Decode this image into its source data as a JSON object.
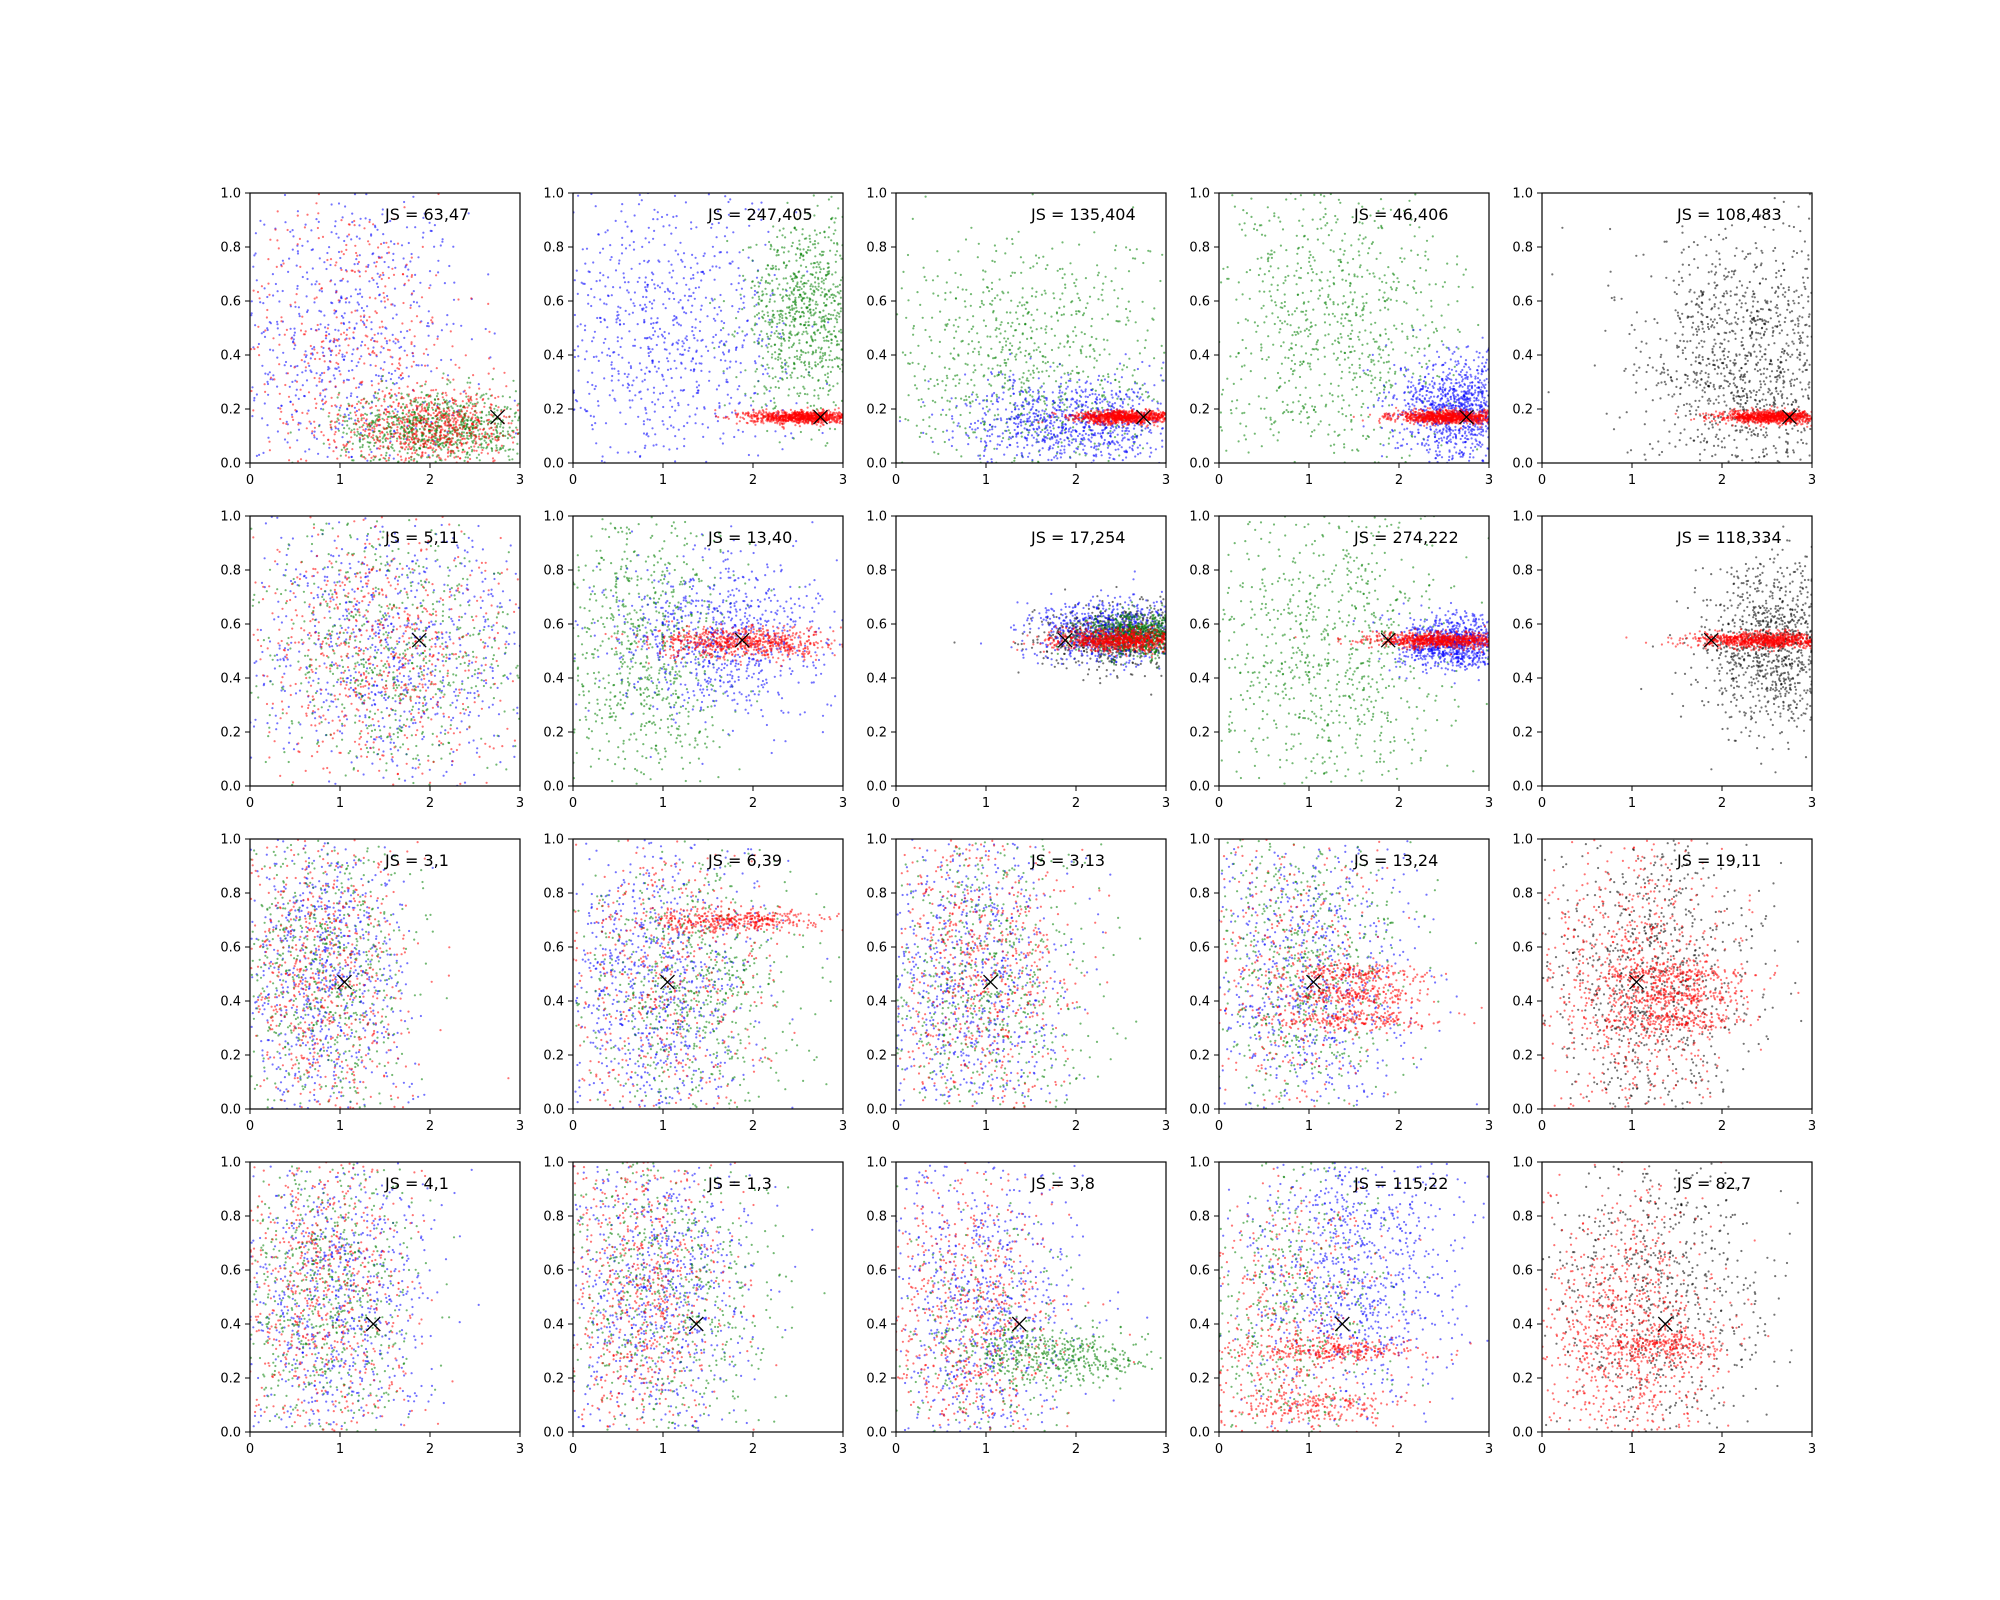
{
  "chart_data": {
    "type": "scatter",
    "grid": false,
    "rows": 4,
    "cols": 5,
    "xlim": [
      0,
      3
    ],
    "ylim": [
      0,
      1
    ],
    "xticks": [
      "0",
      "1",
      "2",
      "3"
    ],
    "yticks": [
      "0.0",
      "0.2",
      "0.4",
      "0.6",
      "0.8",
      "1.0"
    ],
    "colors": {
      "blue": "#0000ff",
      "green": "#008000",
      "red": "#ff0000",
      "black": "#000000"
    },
    "marker_points": [
      {
        "row": 0,
        "x": 2.75,
        "y": 0.17
      },
      {
        "row": 1,
        "x": 1.88,
        "y": 0.54
      },
      {
        "row": 2,
        "x": 1.05,
        "y": 0.47
      },
      {
        "row": 3,
        "x": 1.37,
        "y": 0.4
      }
    ],
    "panels": [
      {
        "row": 0,
        "col": 0,
        "label": "JS = 63,47",
        "clouds": [
          {
            "color": "blue",
            "cx": 1.0,
            "cy": 0.45,
            "sx": 0.7,
            "sy": 0.3,
            "n": 700
          },
          {
            "color": "red",
            "cx": 1.1,
            "cy": 0.4,
            "sx": 0.7,
            "sy": 0.3,
            "n": 500
          },
          {
            "color": "green",
            "cx": 2.1,
            "cy": 0.13,
            "sx": 0.55,
            "sy": 0.07,
            "n": 900
          },
          {
            "color": "red",
            "cx": 2.1,
            "cy": 0.13,
            "sx": 0.55,
            "sy": 0.07,
            "n": 700
          }
        ]
      },
      {
        "row": 0,
        "col": 1,
        "label": "JS = 247,405",
        "clouds": [
          {
            "color": "blue",
            "cx": 1.0,
            "cy": 0.45,
            "sx": 0.7,
            "sy": 0.3,
            "n": 900
          },
          {
            "color": "green",
            "cx": 2.6,
            "cy": 0.55,
            "sx": 0.35,
            "sy": 0.17,
            "n": 900
          },
          {
            "color": "red",
            "cx": 2.55,
            "cy": 0.17,
            "sx": 0.3,
            "sy": 0.012,
            "n": 900
          }
        ]
      },
      {
        "row": 0,
        "col": 2,
        "label": "JS = 135,404",
        "clouds": [
          {
            "color": "green",
            "cx": 1.5,
            "cy": 0.35,
            "sx": 0.8,
            "sy": 0.25,
            "n": 900
          },
          {
            "color": "blue",
            "cx": 2.0,
            "cy": 0.15,
            "sx": 0.6,
            "sy": 0.08,
            "n": 900
          },
          {
            "color": "red",
            "cx": 2.55,
            "cy": 0.17,
            "sx": 0.3,
            "sy": 0.012,
            "n": 900
          }
        ]
      },
      {
        "row": 0,
        "col": 3,
        "label": "JS = 46,406",
        "clouds": [
          {
            "color": "green",
            "cx": 1.3,
            "cy": 0.5,
            "sx": 0.7,
            "sy": 0.3,
            "n": 900
          },
          {
            "color": "blue",
            "cx": 2.7,
            "cy": 0.2,
            "sx": 0.35,
            "sy": 0.1,
            "n": 1100
          },
          {
            "color": "red",
            "cx": 2.55,
            "cy": 0.17,
            "sx": 0.3,
            "sy": 0.012,
            "n": 900
          }
        ]
      },
      {
        "row": 0,
        "col": 4,
        "label": "JS = 108,483",
        "clouds": [
          {
            "color": "black",
            "cx": 2.3,
            "cy": 0.35,
            "sx": 0.6,
            "sy": 0.25,
            "n": 1300
          },
          {
            "color": "red",
            "cx": 2.55,
            "cy": 0.17,
            "sx": 0.3,
            "sy": 0.012,
            "n": 900
          }
        ]
      },
      {
        "row": 1,
        "col": 0,
        "label": "JS = 5,11",
        "clouds": [
          {
            "color": "blue",
            "cx": 1.6,
            "cy": 0.5,
            "sx": 0.8,
            "sy": 0.25,
            "n": 800
          },
          {
            "color": "green",
            "cx": 1.5,
            "cy": 0.5,
            "sx": 0.8,
            "sy": 0.25,
            "n": 700
          },
          {
            "color": "red",
            "cx": 1.5,
            "cy": 0.5,
            "sx": 0.8,
            "sy": 0.25,
            "n": 700
          }
        ]
      },
      {
        "row": 1,
        "col": 1,
        "label": "JS = 13,40",
        "clouds": [
          {
            "color": "green",
            "cx": 0.8,
            "cy": 0.5,
            "sx": 0.5,
            "sy": 0.28,
            "n": 800
          },
          {
            "color": "blue",
            "cx": 1.6,
            "cy": 0.55,
            "sx": 0.6,
            "sy": 0.15,
            "n": 800
          },
          {
            "color": "red",
            "cx": 1.9,
            "cy": 0.53,
            "sx": 0.5,
            "sy": 0.03,
            "n": 700
          }
        ]
      },
      {
        "row": 1,
        "col": 2,
        "label": "JS = 17,254",
        "clouds": [
          {
            "color": "black",
            "cx": 2.5,
            "cy": 0.55,
            "sx": 0.45,
            "sy": 0.06,
            "n": 700
          },
          {
            "color": "blue",
            "cx": 2.4,
            "cy": 0.57,
            "sx": 0.45,
            "sy": 0.06,
            "n": 800
          },
          {
            "color": "green",
            "cx": 2.7,
            "cy": 0.56,
            "sx": 0.3,
            "sy": 0.04,
            "n": 800
          },
          {
            "color": "red",
            "cx": 2.5,
            "cy": 0.54,
            "sx": 0.4,
            "sy": 0.02,
            "n": 900
          }
        ]
      },
      {
        "row": 1,
        "col": 3,
        "label": "JS = 274,222",
        "clouds": [
          {
            "color": "green",
            "cx": 1.2,
            "cy": 0.5,
            "sx": 0.7,
            "sy": 0.3,
            "n": 900
          },
          {
            "color": "blue",
            "cx": 2.6,
            "cy": 0.53,
            "sx": 0.3,
            "sy": 0.05,
            "n": 900
          },
          {
            "color": "red",
            "cx": 2.5,
            "cy": 0.54,
            "sx": 0.4,
            "sy": 0.015,
            "n": 900
          }
        ]
      },
      {
        "row": 1,
        "col": 4,
        "label": "JS = 118,334",
        "clouds": [
          {
            "color": "black",
            "cx": 2.6,
            "cy": 0.5,
            "sx": 0.4,
            "sy": 0.15,
            "n": 1100
          },
          {
            "color": "red",
            "cx": 2.5,
            "cy": 0.54,
            "sx": 0.4,
            "sy": 0.015,
            "n": 900
          }
        ]
      },
      {
        "row": 2,
        "col": 0,
        "label": "JS = 3,1",
        "clouds": [
          {
            "color": "blue",
            "cx": 0.8,
            "cy": 0.5,
            "sx": 0.5,
            "sy": 0.3,
            "n": 800
          },
          {
            "color": "green",
            "cx": 0.8,
            "cy": 0.5,
            "sx": 0.5,
            "sy": 0.3,
            "n": 700
          },
          {
            "color": "red",
            "cx": 0.8,
            "cy": 0.5,
            "sx": 0.5,
            "sy": 0.3,
            "n": 700
          }
        ]
      },
      {
        "row": 2,
        "col": 1,
        "label": "JS = 6,39",
        "clouds": [
          {
            "color": "blue",
            "cx": 0.9,
            "cy": 0.45,
            "sx": 0.6,
            "sy": 0.3,
            "n": 900
          },
          {
            "color": "green",
            "cx": 1.3,
            "cy": 0.45,
            "sx": 0.6,
            "sy": 0.25,
            "n": 700
          },
          {
            "color": "red",
            "cx": 1.0,
            "cy": 0.45,
            "sx": 0.6,
            "sy": 0.3,
            "n": 500
          },
          {
            "color": "red",
            "cx": 1.8,
            "cy": 0.7,
            "sx": 0.45,
            "sy": 0.02,
            "n": 400
          }
        ]
      },
      {
        "row": 2,
        "col": 2,
        "label": "JS = 3,13",
        "clouds": [
          {
            "color": "blue",
            "cx": 0.8,
            "cy": 0.5,
            "sx": 0.55,
            "sy": 0.3,
            "n": 800
          },
          {
            "color": "green",
            "cx": 1.0,
            "cy": 0.45,
            "sx": 0.6,
            "sy": 0.3,
            "n": 700
          },
          {
            "color": "red",
            "cx": 0.9,
            "cy": 0.5,
            "sx": 0.55,
            "sy": 0.3,
            "n": 700
          }
        ]
      },
      {
        "row": 2,
        "col": 3,
        "label": "JS = 13,24",
        "clouds": [
          {
            "color": "blue",
            "cx": 1.0,
            "cy": 0.45,
            "sx": 0.6,
            "sy": 0.3,
            "n": 800
          },
          {
            "color": "green",
            "cx": 0.9,
            "cy": 0.5,
            "sx": 0.6,
            "sy": 0.3,
            "n": 700
          },
          {
            "color": "red",
            "cx": 0.8,
            "cy": 0.5,
            "sx": 0.5,
            "sy": 0.3,
            "n": 400
          },
          {
            "color": "red",
            "cx": 1.5,
            "cy": 0.5,
            "sx": 0.4,
            "sy": 0.02,
            "n": 200
          },
          {
            "color": "red",
            "cx": 1.5,
            "cy": 0.42,
            "sx": 0.4,
            "sy": 0.02,
            "n": 200
          },
          {
            "color": "red",
            "cx": 1.5,
            "cy": 0.33,
            "sx": 0.4,
            "sy": 0.02,
            "n": 200
          }
        ]
      },
      {
        "row": 2,
        "col": 4,
        "label": "JS = 19,11",
        "clouds": [
          {
            "color": "black",
            "cx": 1.2,
            "cy": 0.45,
            "sx": 0.6,
            "sy": 0.3,
            "n": 900
          },
          {
            "color": "red",
            "cx": 1.0,
            "cy": 0.45,
            "sx": 0.55,
            "sy": 0.3,
            "n": 800
          },
          {
            "color": "red",
            "cx": 1.5,
            "cy": 0.5,
            "sx": 0.4,
            "sy": 0.02,
            "n": 200
          },
          {
            "color": "red",
            "cx": 1.5,
            "cy": 0.42,
            "sx": 0.4,
            "sy": 0.02,
            "n": 200
          },
          {
            "color": "red",
            "cx": 1.5,
            "cy": 0.33,
            "sx": 0.4,
            "sy": 0.02,
            "n": 200
          }
        ]
      },
      {
        "row": 3,
        "col": 0,
        "label": "JS = 4,1",
        "clouds": [
          {
            "color": "blue",
            "cx": 0.9,
            "cy": 0.5,
            "sx": 0.55,
            "sy": 0.3,
            "n": 800
          },
          {
            "color": "green",
            "cx": 0.8,
            "cy": 0.5,
            "sx": 0.5,
            "sy": 0.3,
            "n": 700
          },
          {
            "color": "red",
            "cx": 0.8,
            "cy": 0.5,
            "sx": 0.5,
            "sy": 0.3,
            "n": 700
          }
        ]
      },
      {
        "row": 3,
        "col": 1,
        "label": "JS = 1,3",
        "clouds": [
          {
            "color": "blue",
            "cx": 0.9,
            "cy": 0.5,
            "sx": 0.55,
            "sy": 0.3,
            "n": 800
          },
          {
            "color": "green",
            "cx": 1.0,
            "cy": 0.5,
            "sx": 0.6,
            "sy": 0.3,
            "n": 700
          },
          {
            "color": "red",
            "cx": 0.8,
            "cy": 0.5,
            "sx": 0.5,
            "sy": 0.3,
            "n": 700
          }
        ]
      },
      {
        "row": 3,
        "col": 2,
        "label": "JS = 3,8",
        "clouds": [
          {
            "color": "blue",
            "cx": 0.9,
            "cy": 0.45,
            "sx": 0.55,
            "sy": 0.3,
            "n": 800
          },
          {
            "color": "red",
            "cx": 0.8,
            "cy": 0.4,
            "sx": 0.5,
            "sy": 0.3,
            "n": 700
          },
          {
            "color": "green",
            "cx": 1.8,
            "cy": 0.28,
            "sx": 0.5,
            "sy": 0.05,
            "n": 400
          },
          {
            "color": "green",
            "cx": 1.0,
            "cy": 0.3,
            "sx": 0.5,
            "sy": 0.25,
            "n": 300
          }
        ]
      },
      {
        "row": 3,
        "col": 3,
        "label": "JS = 115,22",
        "clouds": [
          {
            "color": "blue",
            "cx": 1.5,
            "cy": 0.6,
            "sx": 0.6,
            "sy": 0.25,
            "n": 900
          },
          {
            "color": "green",
            "cx": 0.8,
            "cy": 0.45,
            "sx": 0.5,
            "sy": 0.3,
            "n": 500
          },
          {
            "color": "red",
            "cx": 0.8,
            "cy": 0.35,
            "sx": 0.5,
            "sy": 0.3,
            "n": 500
          },
          {
            "color": "red",
            "cx": 1.3,
            "cy": 0.3,
            "sx": 0.5,
            "sy": 0.02,
            "n": 250
          },
          {
            "color": "red",
            "cx": 1.0,
            "cy": 0.1,
            "sx": 0.5,
            "sy": 0.03,
            "n": 200
          }
        ]
      },
      {
        "row": 3,
        "col": 4,
        "label": "JS = 82,7",
        "clouds": [
          {
            "color": "black",
            "cx": 1.3,
            "cy": 0.5,
            "sx": 0.6,
            "sy": 0.3,
            "n": 800
          },
          {
            "color": "red",
            "cx": 0.9,
            "cy": 0.35,
            "sx": 0.5,
            "sy": 0.28,
            "n": 900
          },
          {
            "color": "red",
            "cx": 1.3,
            "cy": 0.32,
            "sx": 0.4,
            "sy": 0.03,
            "n": 250
          }
        ]
      }
    ]
  }
}
